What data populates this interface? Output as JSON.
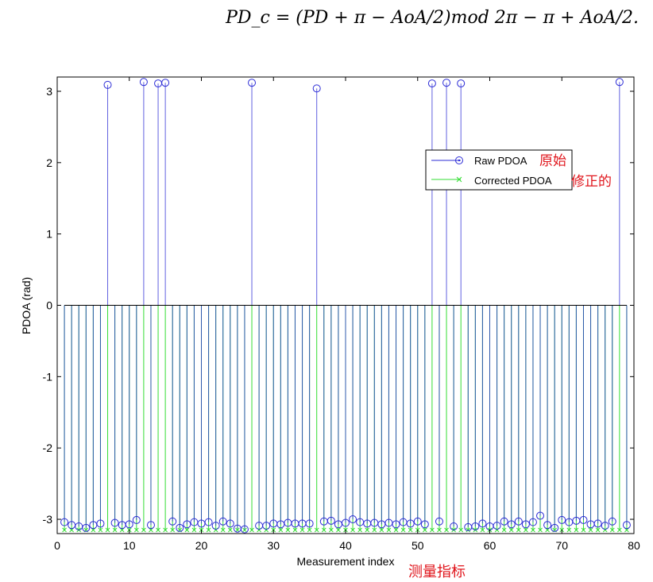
{
  "formula": "PD_c = (PD + π − AoA/2)mod 2π − π + AoA/2.",
  "chart_data": {
    "type": "stem",
    "xlabel": "Measurement index",
    "xlabel_cn": "测量指标",
    "ylabel": "PDOA (rad)",
    "xlim": [
      0,
      80
    ],
    "ylim": [
      -3.2,
      3.2
    ],
    "xticks": [
      "0",
      "10",
      "20",
      "30",
      "40",
      "50",
      "60",
      "70",
      "80"
    ],
    "yticks": [
      "-3",
      "-2",
      "-1",
      "0",
      "1",
      "2",
      "3"
    ],
    "legend_position": "upper-right",
    "x": [
      1,
      2,
      3,
      4,
      5,
      6,
      7,
      8,
      9,
      10,
      11,
      12,
      13,
      14,
      15,
      16,
      17,
      18,
      19,
      20,
      21,
      22,
      23,
      24,
      25,
      26,
      27,
      28,
      29,
      30,
      31,
      32,
      33,
      34,
      35,
      36,
      37,
      38,
      39,
      40,
      41,
      42,
      43,
      44,
      45,
      46,
      47,
      48,
      49,
      50,
      51,
      52,
      53,
      54,
      55,
      56,
      57,
      58,
      59,
      60,
      61,
      62,
      63,
      64,
      65,
      66,
      67,
      68,
      69,
      70,
      71,
      72,
      73,
      74,
      75,
      76,
      77,
      78,
      79
    ],
    "series": [
      {
        "name": "Raw PDOA",
        "name_cn": "原始",
        "color": "#2b2bd6",
        "marker": "circle",
        "values": [
          -3.04,
          -3.08,
          -3.1,
          -3.12,
          -3.08,
          -3.06,
          3.09,
          -3.05,
          -3.08,
          -3.07,
          -3.01,
          3.13,
          -3.08,
          3.11,
          3.12,
          -3.03,
          -3.12,
          -3.07,
          -3.04,
          -3.06,
          -3.04,
          -3.09,
          -3.03,
          -3.06,
          -3.13,
          -3.14,
          3.12,
          -3.09,
          -3.09,
          -3.06,
          -3.07,
          -3.05,
          -3.06,
          -3.06,
          -3.06,
          3.04,
          -3.03,
          -3.02,
          -3.07,
          -3.05,
          -3.0,
          -3.04,
          -3.06,
          -3.05,
          -3.07,
          -3.05,
          -3.07,
          -3.04,
          -3.06,
          -3.03,
          -3.07,
          3.11,
          -3.03,
          3.12,
          -3.1,
          3.11,
          -3.11,
          -3.1,
          -3.06,
          -3.1,
          -3.09,
          -3.03,
          -3.07,
          -3.03,
          -3.07,
          -3.04,
          -2.95,
          -3.08,
          -3.12,
          -3.01,
          -3.04,
          -3.02,
          -3.01,
          -3.07,
          -3.06,
          -3.09,
          -3.03,
          3.13,
          -3.08
        ]
      },
      {
        "name": "Corrected PDOA",
        "name_cn": "修正的",
        "color": "#33dd33",
        "marker": "x",
        "values": [
          -3.15,
          -3.15,
          -3.15,
          -3.15,
          -3.15,
          -3.15,
          -3.15,
          -3.15,
          -3.15,
          -3.15,
          -3.15,
          -3.15,
          -3.15,
          -3.15,
          -3.15,
          -3.15,
          -3.15,
          -3.15,
          -3.15,
          -3.15,
          -3.15,
          -3.15,
          -3.15,
          -3.15,
          -3.15,
          -3.15,
          -3.15,
          -3.15,
          -3.15,
          -3.15,
          -3.15,
          -3.15,
          -3.15,
          -3.15,
          -3.15,
          -3.15,
          -3.15,
          -3.15,
          -3.15,
          -3.15,
          -3.15,
          -3.15,
          -3.15,
          -3.15,
          -3.15,
          -3.15,
          -3.15,
          -3.15,
          -3.15,
          -3.15,
          -3.15,
          -3.15,
          -3.15,
          -3.15,
          -3.15,
          -3.15,
          -3.15,
          -3.15,
          -3.15,
          -3.15,
          -3.15,
          -3.15,
          -3.15,
          -3.15,
          -3.15,
          -3.15,
          -3.15,
          -3.15,
          -3.15,
          -3.15,
          -3.15,
          -3.15,
          -3.15,
          -3.15,
          -3.15,
          -3.15,
          -3.15,
          -3.15,
          -3.15
        ]
      }
    ]
  }
}
